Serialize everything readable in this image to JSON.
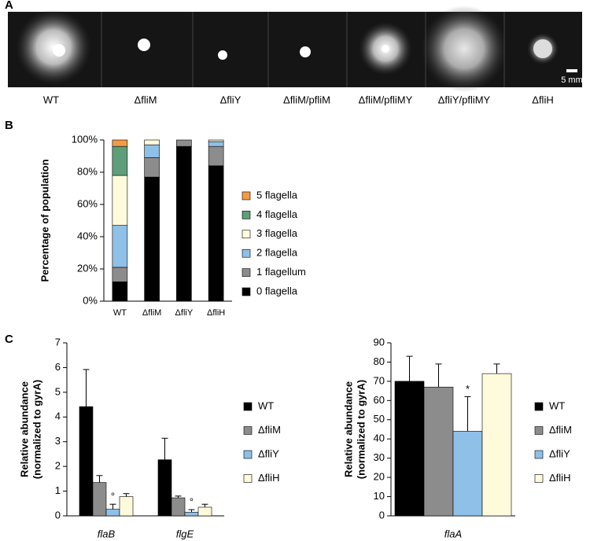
{
  "panel_labels": [
    "A",
    "B",
    "C"
  ],
  "strains": [
    "WT",
    "ΔfliM",
    "ΔfliY",
    "ΔfliM/pfliM",
    "ΔfliM/pfliMY",
    "ΔfliY/pfliMY",
    "ΔfliH"
  ],
  "scale_bar": "5 mm",
  "chart_data": [
    {
      "type": "bar",
      "stacked": true,
      "ylabel": [
        "Percentage of population"
      ],
      "categories": [
        "WT",
        "ΔfliM",
        "ΔfliY",
        "ΔfliH"
      ],
      "ylim": [
        0,
        100
      ],
      "yticks": [
        {
          "value": 0,
          "label": "0%"
        },
        {
          "value": 20,
          "label": "20%"
        },
        {
          "value": 40,
          "label": "40%"
        },
        {
          "value": 60,
          "label": "60%"
        },
        {
          "value": 80,
          "label": "80%"
        },
        {
          "value": 100,
          "label": "100%"
        }
      ],
      "legend": "right",
      "series": [
        {
          "name": "0 flagella",
          "color": "#000000",
          "values": [
            12,
            77,
            96,
            84
          ]
        },
        {
          "name": "1 flagellum",
          "color": "#8c8c8c",
          "values": [
            9,
            12,
            4,
            12
          ]
        },
        {
          "name": "2 flagella",
          "color": "#8ec0e8",
          "values": [
            26,
            8,
            0,
            3
          ]
        },
        {
          "name": "3 flagella",
          "color": "#fdfbdc",
          "values": [
            31,
            3,
            0,
            1
          ]
        },
        {
          "name": "4 flagella",
          "color": "#5f9e7a",
          "values": [
            18,
            0,
            0,
            0
          ]
        },
        {
          "name": "5 flagella",
          "color": "#f39a44",
          "values": [
            4,
            0,
            0,
            0
          ]
        }
      ]
    },
    {
      "type": "bar",
      "ylabel": [
        "Relative abundance",
        "(normalized to gyrA)"
      ],
      "categories": [
        "flaB",
        "flgE"
      ],
      "ylim": [
        0,
        7
      ],
      "yticks": [
        0,
        1,
        2,
        3,
        4,
        5,
        6,
        7
      ],
      "legend": "right",
      "series": [
        {
          "name": "WT",
          "color": "#000000",
          "values": [
            4.42,
            2.27
          ],
          "errors": [
            1.5,
            0.87
          ]
        },
        {
          "name": "ΔfliM",
          "color": "#8c8c8c",
          "values": [
            1.35,
            0.73
          ],
          "errors": [
            0.28,
            0.07
          ]
        },
        {
          "name": "ΔfliY",
          "color": "#8ec0e8",
          "values": [
            0.27,
            0.15
          ],
          "errors": [
            0.2,
            0.1
          ],
          "significance": [
            "°",
            "°"
          ]
        },
        {
          "name": "ΔfliH",
          "color": "#fdfbdc",
          "values": [
            0.78,
            0.35
          ],
          "errors": [
            0.12,
            0.12
          ]
        }
      ]
    },
    {
      "type": "bar",
      "ylabel": [
        "Relative abundance",
        "(normalized to gyrA)"
      ],
      "categories": [
        "flaA"
      ],
      "ylim": [
        0,
        90
      ],
      "yticks": [
        0,
        10,
        20,
        30,
        40,
        50,
        60,
        70,
        80,
        90
      ],
      "legend": "right",
      "series": [
        {
          "name": "WT",
          "color": "#000000",
          "values": [
            70
          ],
          "errors": [
            13
          ]
        },
        {
          "name": "ΔfliM",
          "color": "#8c8c8c",
          "values": [
            67
          ],
          "errors": [
            12
          ]
        },
        {
          "name": "ΔfliY",
          "color": "#8ec0e8",
          "values": [
            44
          ],
          "errors": [
            18
          ],
          "significance": [
            "*"
          ]
        },
        {
          "name": "ΔfliH",
          "color": "#fdfbdc",
          "values": [
            74
          ],
          "errors": [
            5
          ]
        }
      ]
    }
  ]
}
